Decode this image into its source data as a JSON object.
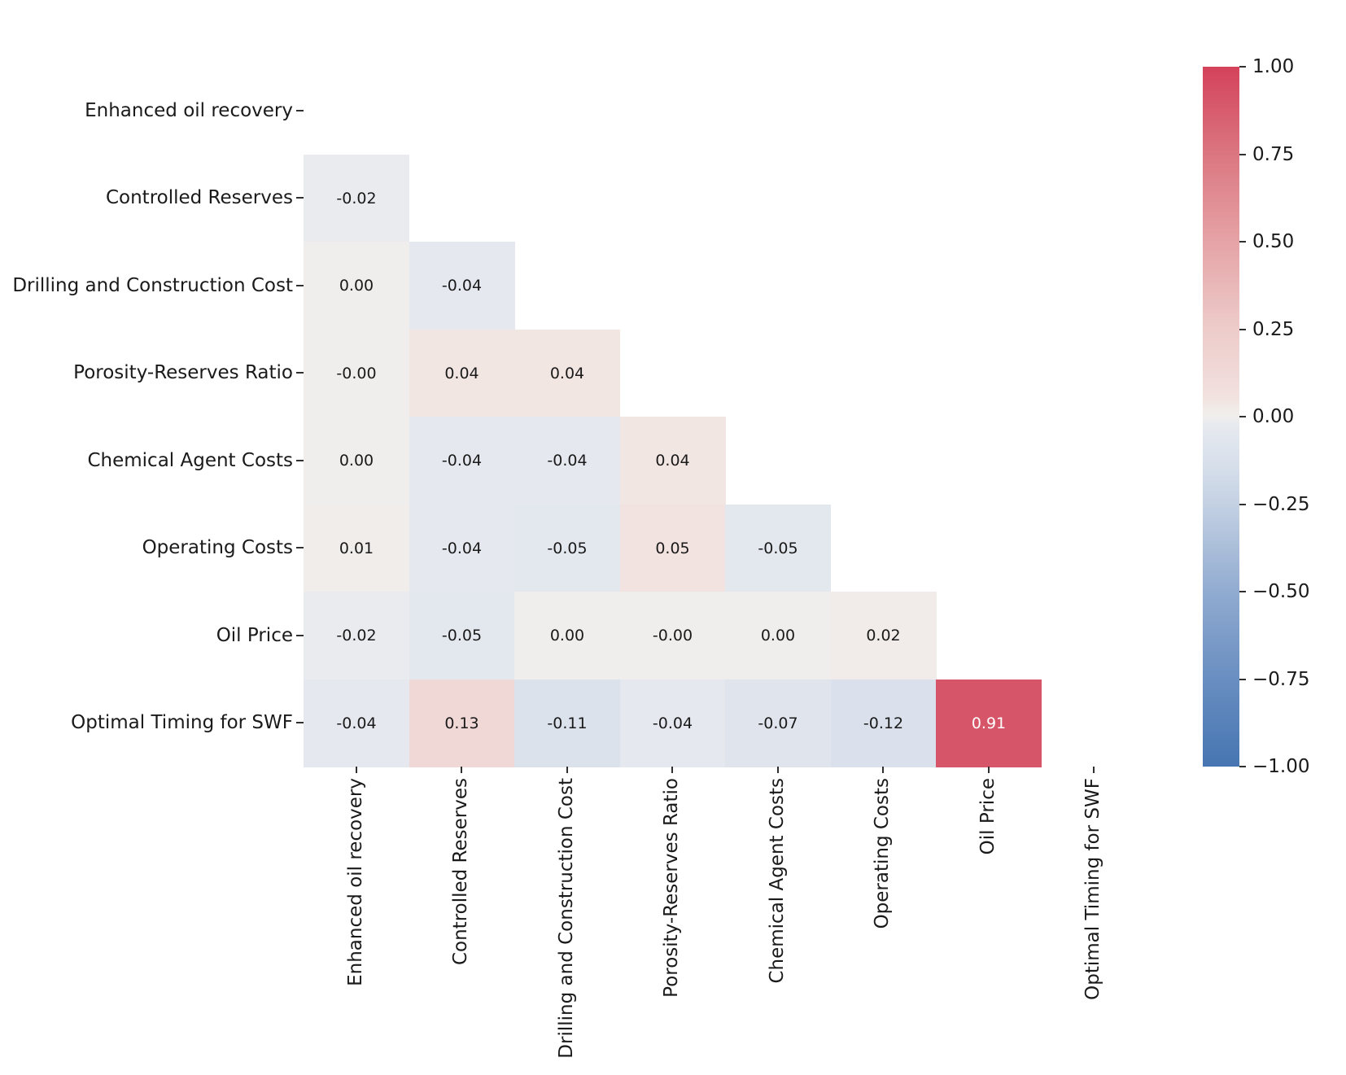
{
  "figure": {
    "background": "#ffffff",
    "text_color": "#1a1a1a"
  },
  "chart_data": {
    "type": "heatmap",
    "subtype": "lower-triangle-correlation-matrix",
    "title": "",
    "variables": [
      "Enhanced oil recovery",
      "Controlled Reserves",
      "Drilling and Construction Cost",
      "Porosity-Reserves Ratio",
      "Chemical Agent Costs",
      "Operating Costs",
      "Oil Price",
      "Optimal Timing for SWF"
    ],
    "rows": [
      {
        "label": "Enhanced oil recovery",
        "cells": []
      },
      {
        "label": "Controlled Reserves",
        "cells": [
          "-0.02"
        ]
      },
      {
        "label": "Drilling and Construction Cost",
        "cells": [
          "0.00",
          "-0.04"
        ]
      },
      {
        "label": "Porosity-Reserves Ratio",
        "cells": [
          "-0.00",
          "0.04",
          "0.04"
        ]
      },
      {
        "label": "Chemical Agent Costs",
        "cells": [
          "0.00",
          "-0.04",
          "-0.04",
          "0.04"
        ]
      },
      {
        "label": "Operating Costs",
        "cells": [
          "0.01",
          "-0.04",
          "-0.05",
          "0.05",
          "-0.05"
        ]
      },
      {
        "label": "Oil Price",
        "cells": [
          "-0.02",
          "-0.05",
          "0.00",
          "-0.00",
          "0.00",
          "0.02"
        ]
      },
      {
        "label": "Optimal Timing for SWF",
        "cells": [
          "-0.04",
          "0.13",
          "-0.11",
          "-0.04",
          "-0.07",
          "-0.12",
          "0.91"
        ]
      }
    ],
    "value_range": [
      -1,
      1
    ],
    "center": 0,
    "grid": false,
    "colorbar": {
      "position": "right",
      "tick_labels": [
        "1.00",
        "0.75",
        "0.50",
        "0.25",
        "0.00",
        "−0.25",
        "−0.50",
        "−0.75",
        "−1.00"
      ]
    },
    "colormap": {
      "name": "diverging blue-white-red (vlag-like)",
      "anchors": [
        {
          "value": -1.0,
          "color": "#4675b1"
        },
        {
          "value": -0.75,
          "color": "#698ec1"
        },
        {
          "value": -0.5,
          "color": "#91abd0"
        },
        {
          "value": -0.25,
          "color": "#c4d1e3"
        },
        {
          "value": -0.12,
          "color": "#dae1ec"
        },
        {
          "value": -0.05,
          "color": "#e3e7ee"
        },
        {
          "value": -0.02,
          "color": "#e9ebef"
        },
        {
          "value": 0.0,
          "color": "#f0eeec"
        },
        {
          "value": 0.02,
          "color": "#f1ece9"
        },
        {
          "value": 0.05,
          "color": "#f2e3e0"
        },
        {
          "value": 0.13,
          "color": "#f0d8d7"
        },
        {
          "value": 0.25,
          "color": "#edccca"
        },
        {
          "value": 0.5,
          "color": "#e5a3a6"
        },
        {
          "value": 0.75,
          "color": "#db7680"
        },
        {
          "value": 1.0,
          "color": "#d4425a"
        }
      ],
      "white_text_threshold": 0.6
    },
    "annotation_text_color": "#1a1a1a",
    "annotation_text_color_strong": "#ffffff",
    "tick_color": "#2f2f2f"
  }
}
